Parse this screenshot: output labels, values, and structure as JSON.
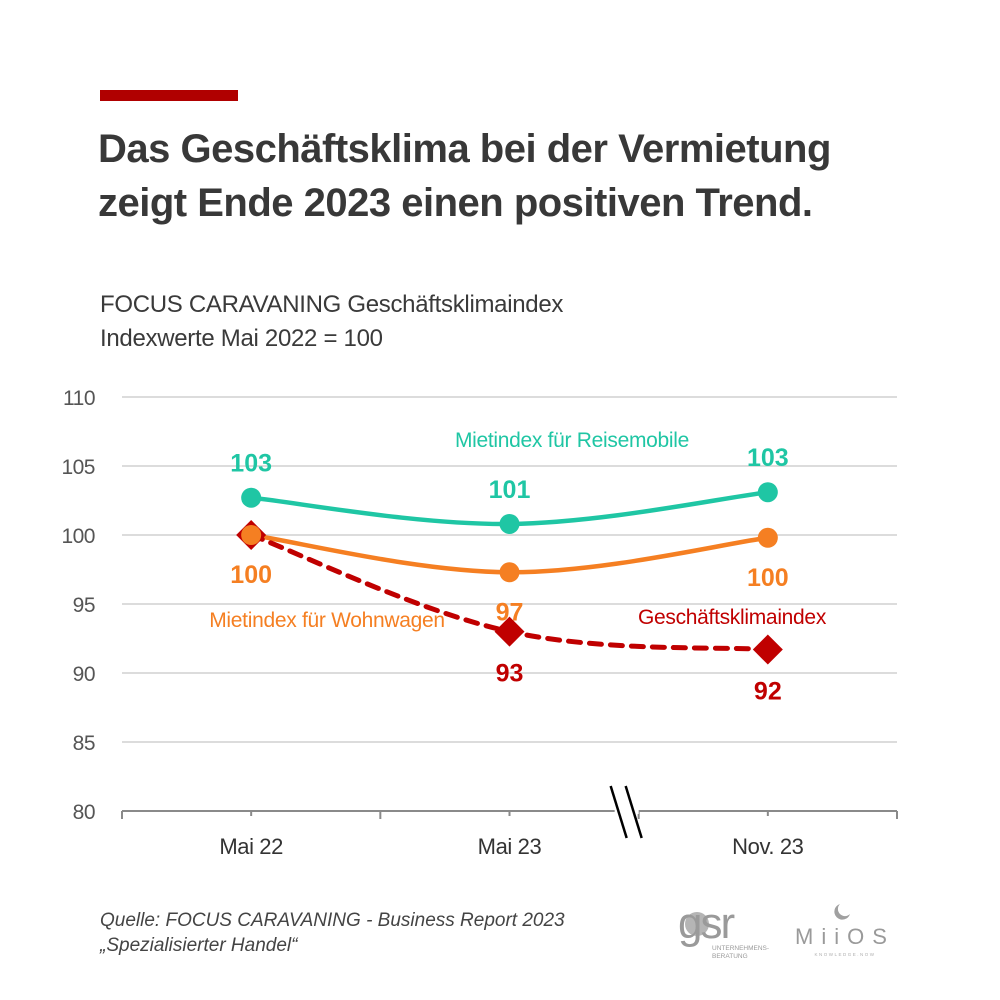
{
  "header": {
    "title_lines": [
      "Das Geschäftsklima bei der Vermietung",
      "zeigt Ende 2023 einen positiven Trend."
    ],
    "subtitle_lines": [
      "FOCUS CARAVANING Geschäftsklimaindex",
      "Indexwerte Mai 2022 = 100"
    ],
    "accent_color": "#b00000"
  },
  "chart_data": {
    "type": "line",
    "title": "Das Geschäftsklima bei der Vermietung zeigt Ende 2023 einen positiven Trend.",
    "subtitle": "FOCUS CARAVANING Geschäftsklimaindex – Indexwerte Mai 2022 = 100",
    "xlabel": "",
    "ylabel": "",
    "categories": [
      "Mai 22",
      "Mai 23",
      "Nov. 23"
    ],
    "axis_break_between": [
      "Mai 22",
      "Mai 23"
    ],
    "ylim": [
      80,
      110
    ],
    "yticks": [
      80,
      85,
      90,
      95,
      100,
      105,
      110
    ],
    "grid": true,
    "legend": "inline labels",
    "series": [
      {
        "name": "Mietindex für Reisemobile",
        "color": "#1fc6a4",
        "marker": "circle",
        "dashed": false,
        "values": [
          102.7,
          100.8,
          103.1
        ],
        "labels": [
          "103",
          "101",
          "103"
        ],
        "label_position": "above"
      },
      {
        "name": "Mietindex für Wohnwagen",
        "color": "#f57f22",
        "marker": "circle",
        "dashed": false,
        "values": [
          100,
          97.3,
          99.8
        ],
        "labels": [
          "100",
          "97",
          "100"
        ],
        "label_position": "below"
      },
      {
        "name": "Geschäftsklimaindex",
        "color": "#c00000",
        "marker": "diamond",
        "dashed": true,
        "values": [
          100,
          93.0,
          91.7
        ],
        "labels": [
          "",
          "93",
          "92"
        ],
        "label_position": "below"
      }
    ]
  },
  "footer": {
    "source_lines": [
      "Quelle: FOCUS CARAVANING - Business Report 2023",
      "„Spezialisierter Handel“"
    ],
    "logos": [
      {
        "name": "gsr",
        "text": "gsr",
        "subtext_lines": [
          "UNTERNEHMENS-",
          "BERATUNG"
        ]
      },
      {
        "name": "miios",
        "text": "MiiOS",
        "subtext": "KNOWLEDGE.NOW"
      }
    ]
  }
}
